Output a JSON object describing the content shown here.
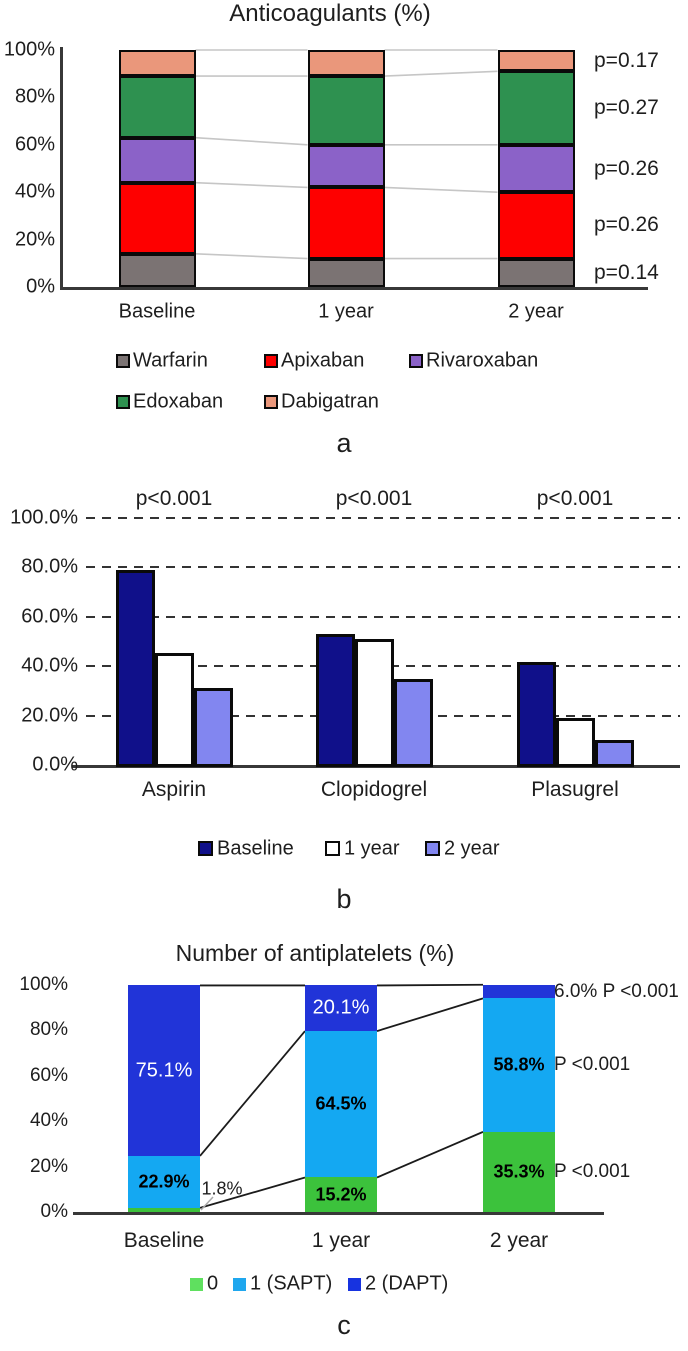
{
  "chart_data": [
    {
      "type": "stacked-bar",
      "panel_label": "a",
      "title": "Anticoagulants (%)",
      "categories": [
        "Baseline",
        "1 year",
        "2 year"
      ],
      "y_ticks": [
        "100%",
        "80%",
        "60%",
        "40%",
        "20%",
        "0%"
      ],
      "ylim": [
        0,
        100
      ],
      "series": [
        {
          "name": "Warfarin",
          "color": "#7B7373",
          "values": [
            14,
            12,
            12
          ]
        },
        {
          "name": "Apixaban",
          "color": "#FE0000",
          "values": [
            30,
            30,
            28
          ]
        },
        {
          "name": "Rivaroxaban",
          "color": "#8B62C8",
          "values": [
            19,
            18,
            20
          ]
        },
        {
          "name": "Edoxaban",
          "color": "#2E9150",
          "values": [
            26,
            29,
            31
          ]
        },
        {
          "name": "Dabigatran",
          "color": "#EA977B",
          "values": [
            11,
            11,
            9
          ]
        }
      ],
      "p_values": [
        "p=0.17",
        "p=0.27",
        "p=0.26",
        "p=0.26",
        "p=0.14"
      ]
    },
    {
      "type": "grouped-bar",
      "panel_label": "b",
      "title": "",
      "categories": [
        "Aspirin",
        "Clopidogrel",
        "Plasugrel"
      ],
      "y_ticks": [
        "100.0%",
        "80.0%",
        "60.0%",
        "40.0%",
        "20.0%",
        "0.0%"
      ],
      "ylim": [
        0,
        100
      ],
      "series": [
        {
          "name": "Baseline",
          "color": "#10108A",
          "values": [
            79,
            53,
            41.5
          ]
        },
        {
          "name": "1 year",
          "color": "#FFFFFF",
          "values": [
            45.5,
            51,
            19
          ]
        },
        {
          "name": "2 year",
          "color": "#8286F0",
          "values": [
            31,
            35,
            10
          ]
        }
      ],
      "group_p_values": [
        "p<0.001",
        "p<0.001",
        "p<0.001"
      ]
    },
    {
      "type": "stacked-bar",
      "panel_label": "c",
      "title": "Number of antiplatelets (%)",
      "categories": [
        "Baseline",
        "1 year",
        "2 year"
      ],
      "y_ticks": [
        "100%",
        "80%",
        "60%",
        "40%",
        "20%",
        "0%"
      ],
      "ylim": [
        0,
        100
      ],
      "series": [
        {
          "name": "0",
          "color": "#3CC23C",
          "legend_color": "#5FE05F",
          "values": [
            1.8,
            15.2,
            35.3
          ]
        },
        {
          "name": "1 (SAPT)",
          "color": "#14A8F2",
          "legend_color": "#1FA7EE",
          "values": [
            22.9,
            64.5,
            58.8
          ]
        },
        {
          "name": "2 (DAPT)",
          "color": "#2134D8",
          "legend_color": "#1733E0",
          "values": [
            75.1,
            20.1,
            6.0
          ]
        }
      ],
      "segment_labels": [
        [
          "1.8%",
          "22.9%",
          "75.1%"
        ],
        [
          "15.2%",
          "64.5%",
          "20.1%"
        ],
        [
          "35.3%",
          "58.8%",
          "6.0%"
        ]
      ],
      "right_annotations": [
        "6.0% P <0.001",
        "P <0.001",
        "P <0.001"
      ]
    }
  ]
}
